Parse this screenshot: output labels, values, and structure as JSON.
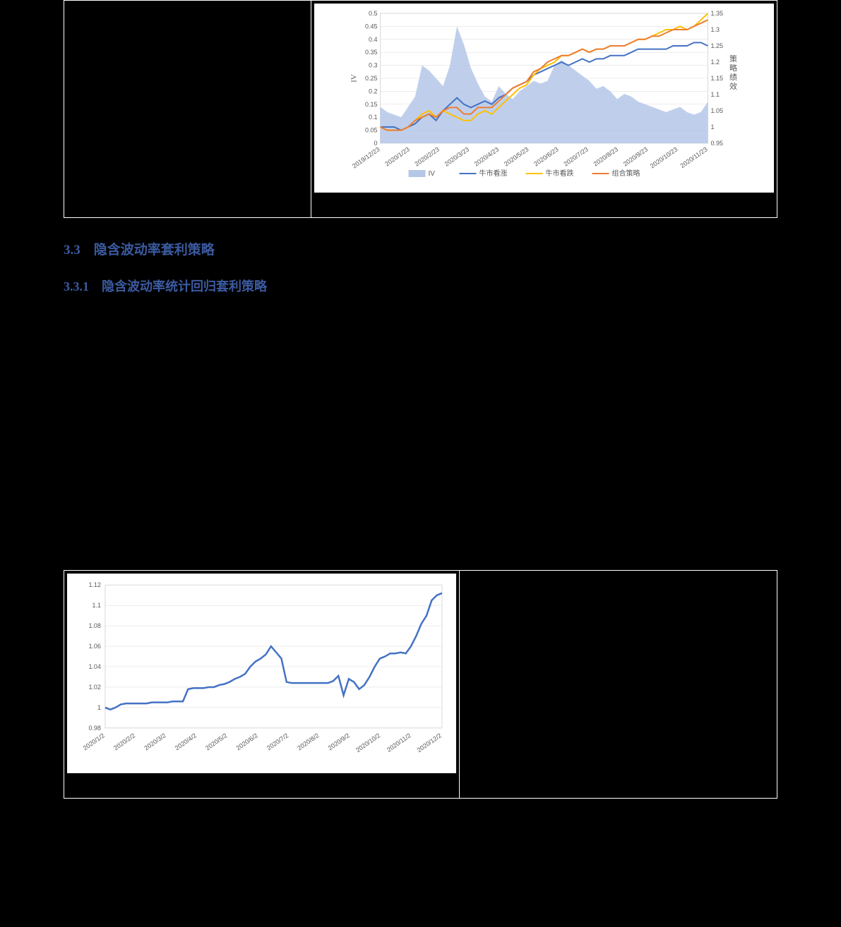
{
  "section_3_3": "3.3　隐含波动率套利策略",
  "section_3_3_1": "3.3.1　隐含波动率统计回归套利策略",
  "chart1": {
    "type": "combo-area-line",
    "background_color": "#ffffff",
    "plot_border_color": "#d9d9d9",
    "grid_color": "#d9d9d9",
    "left_axis": {
      "label": "IV",
      "min": 0,
      "max": 0.5,
      "tick_step": 0.05,
      "ticks": [
        "0",
        "0.05",
        "0.1",
        "0.15",
        "0.2",
        "0.25",
        "0.3",
        "0.35",
        "0.4",
        "0.45",
        "0.5"
      ],
      "fontsize": 9
    },
    "right_axis": {
      "label": "策略绩效",
      "min": 0.95,
      "max": 1.35,
      "tick_step": 0.05,
      "ticks": [
        "0.95",
        "1",
        "1.05",
        "1.1",
        "1.15",
        "1.2",
        "1.25",
        "1.3",
        "1.35"
      ],
      "fontsize": 9
    },
    "x_labels": [
      "2019/12/23",
      "2020/1/23",
      "2020/2/23",
      "2020/3/23",
      "2020/4/23",
      "2020/5/23",
      "2020/6/23",
      "2020/7/23",
      "2020/8/23",
      "2020/9/23",
      "2020/10/23",
      "2020/11/23"
    ],
    "x_label_rotation": -35,
    "legend": {
      "items": [
        {
          "name": "IV",
          "type": "area",
          "color": "#b4c7e7"
        },
        {
          "name": "牛市看涨",
          "type": "line",
          "color": "#4472c4"
        },
        {
          "name": "牛市看跌",
          "type": "line",
          "color": "#ffc000"
        },
        {
          "name": "组合策略",
          "type": "line",
          "color": "#ed7d31"
        }
      ],
      "position": "bottom"
    },
    "series": {
      "iv_area": {
        "color": "#b4c7e7",
        "values": [
          0.14,
          0.12,
          0.11,
          0.1,
          0.14,
          0.18,
          0.3,
          0.28,
          0.25,
          0.22,
          0.3,
          0.45,
          0.38,
          0.29,
          0.23,
          0.18,
          0.16,
          0.22,
          0.19,
          0.17,
          0.2,
          0.22,
          0.24,
          0.23,
          0.24,
          0.3,
          0.32,
          0.3,
          0.28,
          0.26,
          0.24,
          0.21,
          0.22,
          0.2,
          0.17,
          0.19,
          0.18,
          0.16,
          0.15,
          0.14,
          0.13,
          0.12,
          0.13,
          0.14,
          0.12,
          0.11,
          0.12,
          0.16
        ]
      },
      "bull_call": {
        "color": "#4472c4",
        "line_width": 2,
        "values": [
          1.0,
          1.0,
          1.0,
          0.99,
          1.0,
          1.01,
          1.03,
          1.04,
          1.02,
          1.05,
          1.07,
          1.09,
          1.07,
          1.06,
          1.07,
          1.08,
          1.07,
          1.09,
          1.1,
          1.12,
          1.13,
          1.14,
          1.16,
          1.17,
          1.18,
          1.19,
          1.2,
          1.19,
          1.2,
          1.21,
          1.2,
          1.21,
          1.21,
          1.22,
          1.22,
          1.22,
          1.23,
          1.24,
          1.24,
          1.24,
          1.24,
          1.24,
          1.25,
          1.25,
          1.25,
          1.26,
          1.26,
          1.25
        ]
      },
      "bull_put": {
        "color": "#ffc000",
        "line_width": 2,
        "values": [
          1.0,
          0.99,
          0.99,
          0.99,
          1.0,
          1.02,
          1.04,
          1.05,
          1.03,
          1.05,
          1.04,
          1.03,
          1.02,
          1.02,
          1.04,
          1.05,
          1.04,
          1.06,
          1.08,
          1.1,
          1.12,
          1.13,
          1.16,
          1.18,
          1.19,
          1.2,
          1.22,
          1.22,
          1.23,
          1.24,
          1.23,
          1.24,
          1.24,
          1.25,
          1.25,
          1.25,
          1.26,
          1.27,
          1.27,
          1.28,
          1.29,
          1.3,
          1.3,
          1.31,
          1.3,
          1.31,
          1.33,
          1.35
        ]
      },
      "combo": {
        "color": "#ed7d31",
        "line_width": 2,
        "values": [
          1.0,
          0.99,
          0.99,
          0.99,
          1.0,
          1.02,
          1.03,
          1.04,
          1.03,
          1.05,
          1.06,
          1.06,
          1.04,
          1.04,
          1.06,
          1.06,
          1.06,
          1.08,
          1.1,
          1.12,
          1.13,
          1.14,
          1.17,
          1.18,
          1.2,
          1.21,
          1.22,
          1.22,
          1.23,
          1.24,
          1.23,
          1.24,
          1.24,
          1.25,
          1.25,
          1.25,
          1.26,
          1.27,
          1.27,
          1.28,
          1.28,
          1.29,
          1.3,
          1.3,
          1.3,
          1.31,
          1.32,
          1.33
        ]
      }
    }
  },
  "chart2": {
    "type": "line",
    "background_color": "#ffffff",
    "plot_border_color": "#d9d9d9",
    "grid_color": "#d9d9d9",
    "y_axis": {
      "min": 0.98,
      "max": 1.12,
      "tick_step": 0.02,
      "ticks": [
        "0.98",
        "1",
        "1.02",
        "1.04",
        "1.06",
        "1.08",
        "1.1",
        "1.12"
      ],
      "fontsize": 10
    },
    "x_labels": [
      "2020/1/2",
      "2020/2/2",
      "2020/3/2",
      "2020/4/2",
      "2020/5/2",
      "2020/6/2",
      "2020/7/2",
      "2020/8/2",
      "2020/9/2",
      "2020/10/2",
      "2020/11/2",
      "2020/12/2"
    ],
    "x_label_rotation": -35,
    "series": {
      "nav": {
        "color": "#4472c4",
        "line_width": 2.5,
        "values": [
          1.0,
          0.998,
          1.0,
          1.003,
          1.004,
          1.004,
          1.004,
          1.004,
          1.004,
          1.005,
          1.005,
          1.005,
          1.005,
          1.006,
          1.006,
          1.006,
          1.018,
          1.019,
          1.019,
          1.019,
          1.02,
          1.02,
          1.022,
          1.023,
          1.025,
          1.028,
          1.03,
          1.033,
          1.04,
          1.045,
          1.048,
          1.052,
          1.06,
          1.054,
          1.048,
          1.025,
          1.024,
          1.024,
          1.024,
          1.024,
          1.024,
          1.024,
          1.024,
          1.024,
          1.026,
          1.031,
          1.012,
          1.028,
          1.025,
          1.018,
          1.022,
          1.03,
          1.04,
          1.048,
          1.05,
          1.053,
          1.053,
          1.054,
          1.053,
          1.06,
          1.07,
          1.082,
          1.09,
          1.105,
          1.11,
          1.112
        ]
      }
    }
  }
}
